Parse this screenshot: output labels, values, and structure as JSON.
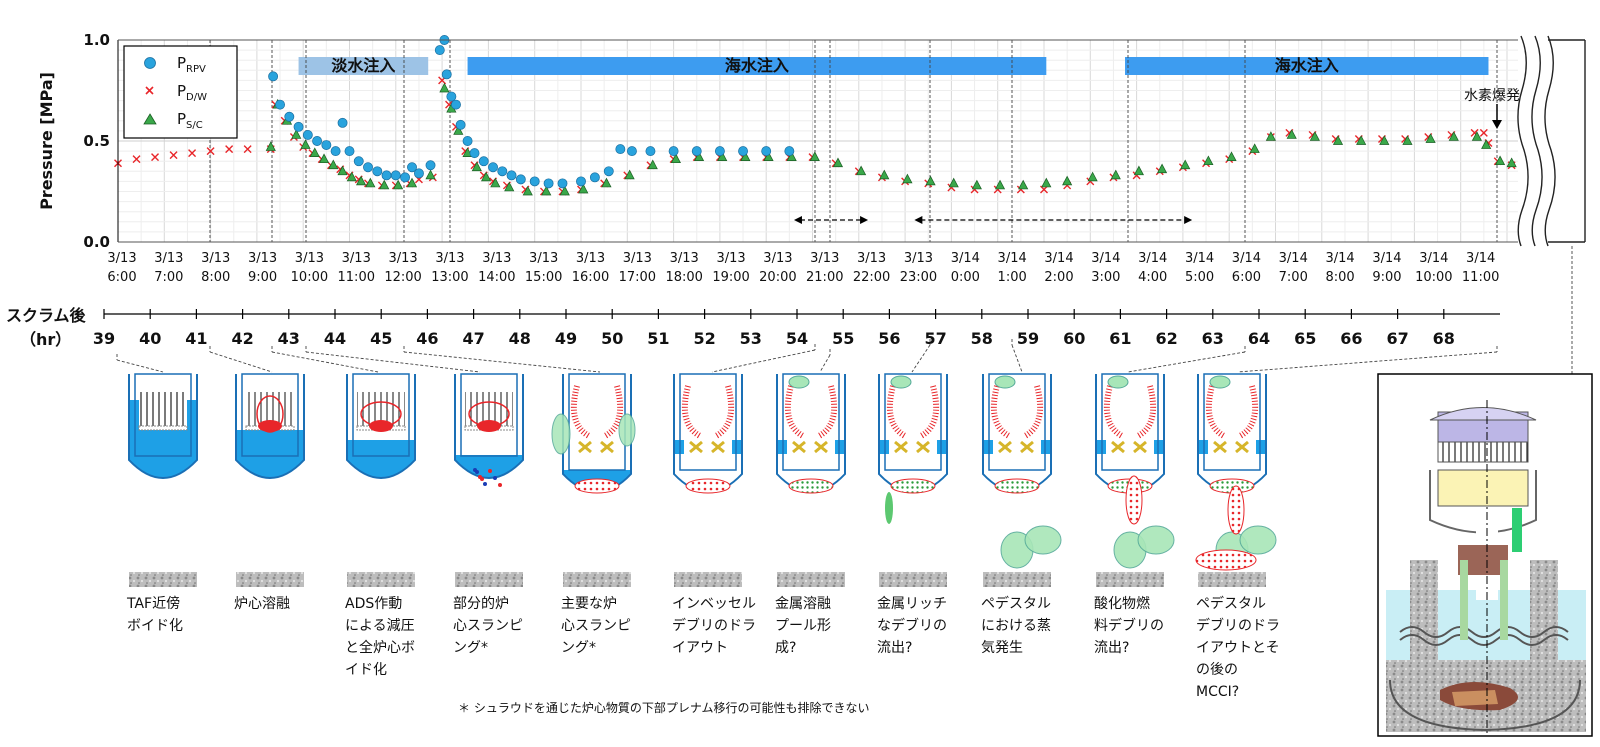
{
  "chart_data": {
    "type": "scatter",
    "ylabel": "Pressure [MPa]",
    "ylim": [
      0.0,
      1.0
    ],
    "y_ticks": [
      "0.0",
      "0.5",
      "1.0"
    ],
    "grid": true,
    "legend_position": "top-left",
    "x_tick_labels": [
      [
        "3/13",
        "6:00"
      ],
      [
        "3/13",
        "7:00"
      ],
      [
        "3/13",
        "8:00"
      ],
      [
        "3/13",
        "9:00"
      ],
      [
        "3/13",
        "10:00"
      ],
      [
        "3/13",
        "11:00"
      ],
      [
        "3/13",
        "12:00"
      ],
      [
        "3/13",
        "13:00"
      ],
      [
        "3/13",
        "14:00"
      ],
      [
        "3/13",
        "15:00"
      ],
      [
        "3/13",
        "16:00"
      ],
      [
        "3/13",
        "17:00"
      ],
      [
        "3/13",
        "18:00"
      ],
      [
        "3/13",
        "19:00"
      ],
      [
        "3/13",
        "20:00"
      ],
      [
        "3/13",
        "21:00"
      ],
      [
        "3/13",
        "22:00"
      ],
      [
        "3/13",
        "23:00"
      ],
      [
        "3/14",
        "0:00"
      ],
      [
        "3/14",
        "1:00"
      ],
      [
        "3/14",
        "2:00"
      ],
      [
        "3/14",
        "3:00"
      ],
      [
        "3/14",
        "4:00"
      ],
      [
        "3/14",
        "5:00"
      ],
      [
        "3/14",
        "6:00"
      ],
      [
        "3/14",
        "7:00"
      ],
      [
        "3/14",
        "8:00"
      ],
      [
        "3/14",
        "9:00"
      ],
      [
        "3/14",
        "10:00"
      ],
      [
        "3/14",
        "11:00"
      ]
    ],
    "x_range_hours_after_scram": [
      39,
      69.2
    ],
    "series": [
      {
        "name": "P_RPV",
        "marker": "circle",
        "color": "#29a3dd",
        "points": [
          [
            42.35,
            0.82
          ],
          [
            42.5,
            0.68
          ],
          [
            42.7,
            0.62
          ],
          [
            42.9,
            0.57
          ],
          [
            43.1,
            0.53
          ],
          [
            43.3,
            0.5
          ],
          [
            43.5,
            0.48
          ],
          [
            43.7,
            0.45
          ],
          [
            43.85,
            0.59
          ],
          [
            44.0,
            0.45
          ],
          [
            44.2,
            0.4
          ],
          [
            44.4,
            0.37
          ],
          [
            44.6,
            0.35
          ],
          [
            44.8,
            0.33
          ],
          [
            45.0,
            0.33
          ],
          [
            45.2,
            0.32
          ],
          [
            45.35,
            0.37
          ],
          [
            45.5,
            0.34
          ],
          [
            45.75,
            0.38
          ],
          [
            45.95,
            0.95
          ],
          [
            46.05,
            1.0
          ],
          [
            46.1,
            0.83
          ],
          [
            46.2,
            0.72
          ],
          [
            46.3,
            0.68
          ],
          [
            46.4,
            0.58
          ],
          [
            46.55,
            0.5
          ],
          [
            46.7,
            0.44
          ],
          [
            46.9,
            0.4
          ],
          [
            47.1,
            0.37
          ],
          [
            47.3,
            0.35
          ],
          [
            47.5,
            0.33
          ],
          [
            47.7,
            0.31
          ],
          [
            48.0,
            0.3
          ],
          [
            48.3,
            0.29
          ],
          [
            48.6,
            0.29
          ],
          [
            49.0,
            0.3
          ],
          [
            49.3,
            0.32
          ],
          [
            49.6,
            0.35
          ],
          [
            49.85,
            0.46
          ],
          [
            50.1,
            0.45
          ],
          [
            50.5,
            0.45
          ],
          [
            51.0,
            0.45
          ],
          [
            51.5,
            0.45
          ],
          [
            52.0,
            0.45
          ],
          [
            52.5,
            0.45
          ],
          [
            53.0,
            0.45
          ],
          [
            53.5,
            0.45
          ]
        ]
      },
      {
        "name": "P_D/W",
        "marker": "x",
        "color": "#e8262a",
        "points": [
          [
            39.0,
            0.39
          ],
          [
            39.4,
            0.41
          ],
          [
            39.8,
            0.42
          ],
          [
            40.2,
            0.43
          ],
          [
            40.6,
            0.44
          ],
          [
            41.0,
            0.45
          ],
          [
            41.4,
            0.46
          ],
          [
            41.8,
            0.46
          ],
          [
            42.3,
            0.46
          ],
          [
            42.4,
            0.68
          ],
          [
            42.6,
            0.6
          ],
          [
            42.8,
            0.52
          ],
          [
            43.0,
            0.47
          ],
          [
            43.2,
            0.44
          ],
          [
            43.4,
            0.41
          ],
          [
            43.6,
            0.38
          ],
          [
            43.8,
            0.36
          ],
          [
            44.0,
            0.33
          ],
          [
            44.2,
            0.31
          ],
          [
            44.4,
            0.29
          ],
          [
            44.7,
            0.28
          ],
          [
            45.0,
            0.28
          ],
          [
            45.3,
            0.29
          ],
          [
            45.5,
            0.31
          ],
          [
            45.8,
            0.32
          ],
          [
            46.0,
            0.8
          ],
          [
            46.15,
            0.68
          ],
          [
            46.3,
            0.57
          ],
          [
            46.5,
            0.45
          ],
          [
            46.7,
            0.38
          ],
          [
            46.9,
            0.33
          ],
          [
            47.1,
            0.3
          ],
          [
            47.4,
            0.28
          ],
          [
            47.8,
            0.26
          ],
          [
            48.2,
            0.25
          ],
          [
            48.6,
            0.25
          ],
          [
            49.0,
            0.26
          ],
          [
            49.5,
            0.29
          ],
          [
            50.0,
            0.33
          ],
          [
            50.5,
            0.38
          ],
          [
            51.0,
            0.41
          ],
          [
            51.5,
            0.42
          ],
          [
            52.0,
            0.42
          ],
          [
            52.5,
            0.42
          ],
          [
            53.0,
            0.42
          ],
          [
            53.5,
            0.42
          ],
          [
            54.0,
            0.42
          ],
          [
            54.5,
            0.39
          ],
          [
            55.0,
            0.35
          ],
          [
            55.5,
            0.32
          ],
          [
            56.0,
            0.3
          ],
          [
            56.5,
            0.29
          ],
          [
            57.0,
            0.27
          ],
          [
            57.5,
            0.26
          ],
          [
            58.0,
            0.26
          ],
          [
            58.5,
            0.26
          ],
          [
            59.0,
            0.26
          ],
          [
            59.5,
            0.28
          ],
          [
            60.0,
            0.3
          ],
          [
            60.5,
            0.32
          ],
          [
            61.0,
            0.33
          ],
          [
            61.5,
            0.35
          ],
          [
            62.0,
            0.37
          ],
          [
            62.5,
            0.39
          ],
          [
            63.0,
            0.41
          ],
          [
            63.5,
            0.45
          ],
          [
            63.9,
            0.52
          ],
          [
            64.3,
            0.54
          ],
          [
            64.8,
            0.53
          ],
          [
            65.3,
            0.51
          ],
          [
            65.8,
            0.51
          ],
          [
            66.3,
            0.51
          ],
          [
            66.8,
            0.51
          ],
          [
            67.3,
            0.52
          ],
          [
            67.8,
            0.53
          ],
          [
            68.3,
            0.54
          ],
          [
            68.5,
            0.54
          ],
          [
            68.6,
            0.49
          ],
          [
            68.8,
            0.4
          ],
          [
            69.1,
            0.38
          ]
        ]
      },
      {
        "name": "P_S/C",
        "marker": "triangle",
        "color": "#3aa84a",
        "points": [
          [
            42.3,
            0.47
          ],
          [
            42.45,
            0.68
          ],
          [
            42.65,
            0.6
          ],
          [
            42.85,
            0.53
          ],
          [
            43.05,
            0.48
          ],
          [
            43.25,
            0.44
          ],
          [
            43.45,
            0.41
          ],
          [
            43.65,
            0.38
          ],
          [
            43.85,
            0.35
          ],
          [
            44.05,
            0.32
          ],
          [
            44.25,
            0.3
          ],
          [
            44.45,
            0.29
          ],
          [
            44.75,
            0.28
          ],
          [
            45.05,
            0.28
          ],
          [
            45.35,
            0.29
          ],
          [
            45.75,
            0.33
          ],
          [
            46.05,
            0.76
          ],
          [
            46.2,
            0.66
          ],
          [
            46.35,
            0.55
          ],
          [
            46.55,
            0.44
          ],
          [
            46.75,
            0.37
          ],
          [
            46.95,
            0.32
          ],
          [
            47.15,
            0.29
          ],
          [
            47.45,
            0.27
          ],
          [
            47.85,
            0.25
          ],
          [
            48.25,
            0.25
          ],
          [
            48.65,
            0.25
          ],
          [
            49.05,
            0.26
          ],
          [
            49.55,
            0.29
          ],
          [
            50.05,
            0.33
          ],
          [
            50.55,
            0.38
          ],
          [
            51.05,
            0.41
          ],
          [
            51.55,
            0.42
          ],
          [
            52.05,
            0.42
          ],
          [
            52.55,
            0.42
          ],
          [
            53.05,
            0.42
          ],
          [
            53.55,
            0.42
          ],
          [
            54.05,
            0.42
          ],
          [
            54.55,
            0.39
          ],
          [
            55.05,
            0.35
          ],
          [
            55.55,
            0.33
          ],
          [
            56.05,
            0.31
          ],
          [
            56.55,
            0.3
          ],
          [
            57.05,
            0.29
          ],
          [
            57.55,
            0.28
          ],
          [
            58.05,
            0.28
          ],
          [
            58.55,
            0.28
          ],
          [
            59.05,
            0.29
          ],
          [
            59.5,
            0.3
          ],
          [
            60.05,
            0.32
          ],
          [
            60.55,
            0.33
          ],
          [
            61.05,
            0.35
          ],
          [
            61.55,
            0.36
          ],
          [
            62.05,
            0.38
          ],
          [
            62.55,
            0.4
          ],
          [
            63.05,
            0.42
          ],
          [
            63.55,
            0.46
          ],
          [
            63.9,
            0.52
          ],
          [
            64.35,
            0.53
          ],
          [
            64.85,
            0.52
          ],
          [
            65.35,
            0.5
          ],
          [
            65.85,
            0.5
          ],
          [
            66.35,
            0.5
          ],
          [
            66.85,
            0.5
          ],
          [
            67.35,
            0.51
          ],
          [
            67.85,
            0.52
          ],
          [
            68.35,
            0.52
          ],
          [
            68.55,
            0.48
          ],
          [
            68.85,
            0.4
          ],
          [
            69.1,
            0.39
          ]
        ]
      }
    ],
    "injection_bars": [
      {
        "label": "淡水注入",
        "start": 42.9,
        "end": 45.7,
        "color": "#9dc3e6"
      },
      {
        "label": "海水注入",
        "start": 46.55,
        "end": 59.05,
        "color": "#3d9cf0"
      },
      {
        "label": "海水注入",
        "start": 60.75,
        "end": 68.6,
        "color": "#3d9cf0"
      }
    ],
    "arrows": [
      {
        "from": 53.6,
        "to": 55.2
      },
      {
        "from": 56.2,
        "to": 62.2
      }
    ]
  },
  "legend": {
    "items": [
      {
        "main": "P",
        "sub": "RPV",
        "marker": "circle",
        "color": "#29a3dd"
      },
      {
        "main": "P",
        "sub": "D/W",
        "marker": "x",
        "color": "#e8262a"
      },
      {
        "main": "P",
        "sub": "S/C",
        "marker": "triangle",
        "color": "#3aa84a"
      }
    ]
  },
  "annotation_h2": "水素爆発",
  "scram_axis": {
    "label_line1": "スクラム後",
    "label_line2": "（hr）",
    "ticks": [
      "39",
      "40",
      "41",
      "42",
      "43",
      "44",
      "45",
      "46",
      "47",
      "48",
      "49",
      "50",
      "51",
      "52",
      "53",
      "54",
      "55",
      "56",
      "57",
      "58",
      "59",
      "60",
      "61",
      "62",
      "63",
      "64",
      "65",
      "66",
      "67",
      "68"
    ]
  },
  "stages": [
    {
      "caption": [
        "TAF近傍",
        "ボイド化"
      ]
    },
    {
      "caption": [
        "炉心溶融"
      ]
    },
    {
      "caption": [
        "ADS作動",
        "による減圧",
        "と全炉心ボ",
        "イド化"
      ]
    },
    {
      "caption": [
        "部分的炉",
        "心スランピ",
        "ング*"
      ]
    },
    {
      "caption": [
        "主要な炉",
        "心スランピ",
        "ング*"
      ]
    },
    {
      "caption": [
        "インベッセル",
        "デブリのドラ",
        "イアウト"
      ]
    },
    {
      "caption": [
        "金属溶融",
        "プール形",
        "成?"
      ]
    },
    {
      "caption": [
        "金属リッチ",
        "なデブリの",
        "流出?"
      ]
    },
    {
      "caption": [
        "ペデスタル",
        "における蒸",
        "気発生"
      ]
    },
    {
      "caption": [
        "酸化物燃",
        "料デブリの",
        "流出?"
      ]
    },
    {
      "caption": [
        "ペデスタル",
        "デブリのドラ",
        "イアウトとそ",
        "の後の",
        "MCCI?"
      ]
    }
  ],
  "footnote": "＊ シュラウドを通じた炉心物質の下部プレナム移行の可能性も排除できない"
}
